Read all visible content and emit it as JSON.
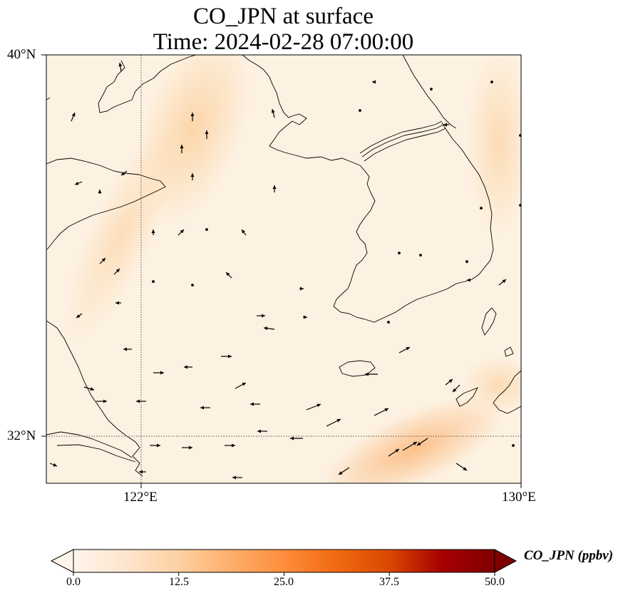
{
  "title": {
    "line1": "CO_JPN at surface",
    "line2": "Time: 2024-02-28 07:00:00"
  },
  "map": {
    "lat_range": [
      31.2,
      40.0
    ],
    "lon_range": [
      120.0,
      130.0
    ],
    "lat_ticks": [
      {
        "value": 40,
        "label": "40°N"
      },
      {
        "value": 32,
        "label": "32°N"
      }
    ],
    "lon_ticks": [
      {
        "value": 122,
        "label": "122°E"
      },
      {
        "value": 130,
        "label": "130°E"
      }
    ],
    "gridlines": {
      "lat": [
        32
      ],
      "lon": [
        122
      ]
    },
    "background_color": "#fdf0df",
    "coastline_color": "#000000"
  },
  "colorbar": {
    "label": "CO_JPN (ppbv)",
    "ticks": [
      "0.0",
      "12.5",
      "25.0",
      "37.5",
      "50.0"
    ],
    "tick_values": [
      0,
      12.5,
      25,
      37.5,
      50
    ],
    "range": [
      0,
      50
    ],
    "extend": "max",
    "colors": [
      "#fff5eb",
      "#fee6ce",
      "#fdd0a2",
      "#fdae6b",
      "#fd8d3c",
      "#f16913",
      "#d94801",
      "#a60000",
      "#7f0000"
    ]
  },
  "wind_vectors_note": "",
  "chart_data": {
    "type": "heatmap",
    "variable": "CO_JPN",
    "units": "ppbv",
    "concentration_ppbv": [
      {
        "lon": 123.5,
        "lat": 38.8,
        "value": 6
      },
      {
        "lon": 121.8,
        "lat": 35.5,
        "value": 5
      },
      {
        "lon": 128.5,
        "lat": 31.7,
        "value": 9
      },
      {
        "lon": 129.5,
        "lat": 39.0,
        "value": 6
      },
      {
        "lon": 124.5,
        "lat": 33.0,
        "value": 3
      },
      {
        "lon": 120.5,
        "lat": 33.5,
        "value": 3
      }
    ]
  }
}
